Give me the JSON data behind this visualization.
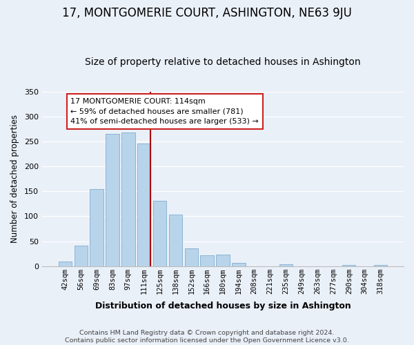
{
  "title": "17, MONTGOMERIE COURT, ASHINGTON, NE63 9JU",
  "subtitle": "Size of property relative to detached houses in Ashington",
  "xlabel": "Distribution of detached houses by size in Ashington",
  "ylabel": "Number of detached properties",
  "bar_labels": [
    "42sqm",
    "56sqm",
    "69sqm",
    "83sqm",
    "97sqm",
    "111sqm",
    "125sqm",
    "138sqm",
    "152sqm",
    "166sqm",
    "180sqm",
    "194sqm",
    "208sqm",
    "221sqm",
    "235sqm",
    "249sqm",
    "263sqm",
    "277sqm",
    "290sqm",
    "304sqm",
    "318sqm"
  ],
  "bar_values": [
    9,
    41,
    155,
    265,
    268,
    246,
    131,
    103,
    35,
    22,
    23,
    6,
    0,
    0,
    4,
    0,
    0,
    0,
    2,
    0,
    2
  ],
  "bar_color": "#b8d4ea",
  "bar_edge_color": "#8ab4d4",
  "highlight_line_color": "#aa0000",
  "annotation_line1": "17 MONTGOMERIE COURT: 114sqm",
  "annotation_line2": "← 59% of detached houses are smaller (781)",
  "annotation_line3": "41% of semi-detached houses are larger (533) →",
  "annotation_box_facecolor": "#ffffff",
  "annotation_box_edgecolor": "#cc2222",
  "footer_text": "Contains HM Land Registry data © Crown copyright and database right 2024.\nContains public sector information licensed under the Open Government Licence v3.0.",
  "ylim": [
    0,
    350
  ],
  "background_color": "#eaf0f8",
  "grid_color": "#ffffff"
}
